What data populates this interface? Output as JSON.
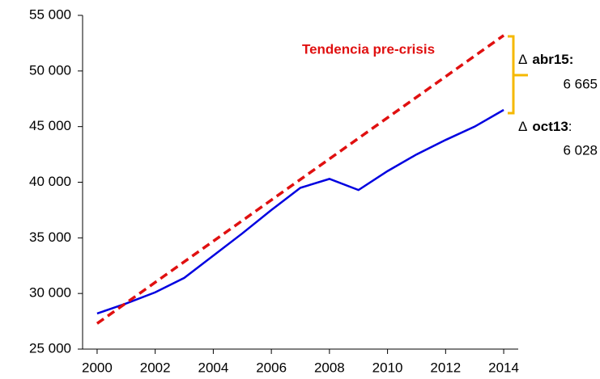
{
  "chart_data": {
    "type": "line",
    "x": [
      2000,
      2001,
      2002,
      2003,
      2004,
      2005,
      2006,
      2007,
      2008,
      2009,
      2010,
      2011,
      2012,
      2013,
      2014
    ],
    "series": [
      {
        "color": "#0000e0",
        "values": [
          28200,
          29100,
          30100,
          31400,
          33400,
          35400,
          37500,
          39500,
          40300,
          39300,
          41000,
          42500,
          43800,
          45000,
          46500
        ]
      },
      {
        "color": "#e01010",
        "dashed": true,
        "x": [
          2000,
          2014
        ],
        "values": [
          27300,
          53200
        ]
      }
    ],
    "xlim": [
      1999.5,
      2014.5
    ],
    "xticks": [
      2000,
      2002,
      2004,
      2006,
      2008,
      2010,
      2012,
      2014
    ],
    "ylim": [
      25000,
      55000
    ],
    "yticks": [
      {
        "value": 25000,
        "label": "25 000"
      },
      {
        "value": 30000,
        "label": "30 000"
      },
      {
        "value": 35000,
        "label": "35 000"
      },
      {
        "value": 40000,
        "label": "40 000"
      },
      {
        "value": 45000,
        "label": "45 000"
      },
      {
        "value": 50000,
        "label": "50 000"
      },
      {
        "value": 55000,
        "label": "55 000"
      }
    ],
    "annotations": [
      "Tendencia pre-crisis",
      "Δ",
      "abr15:",
      "6 665",
      "Δ",
      "oct13",
      ":",
      "6 028"
    ],
    "bracket_color": "#f5b800"
  }
}
